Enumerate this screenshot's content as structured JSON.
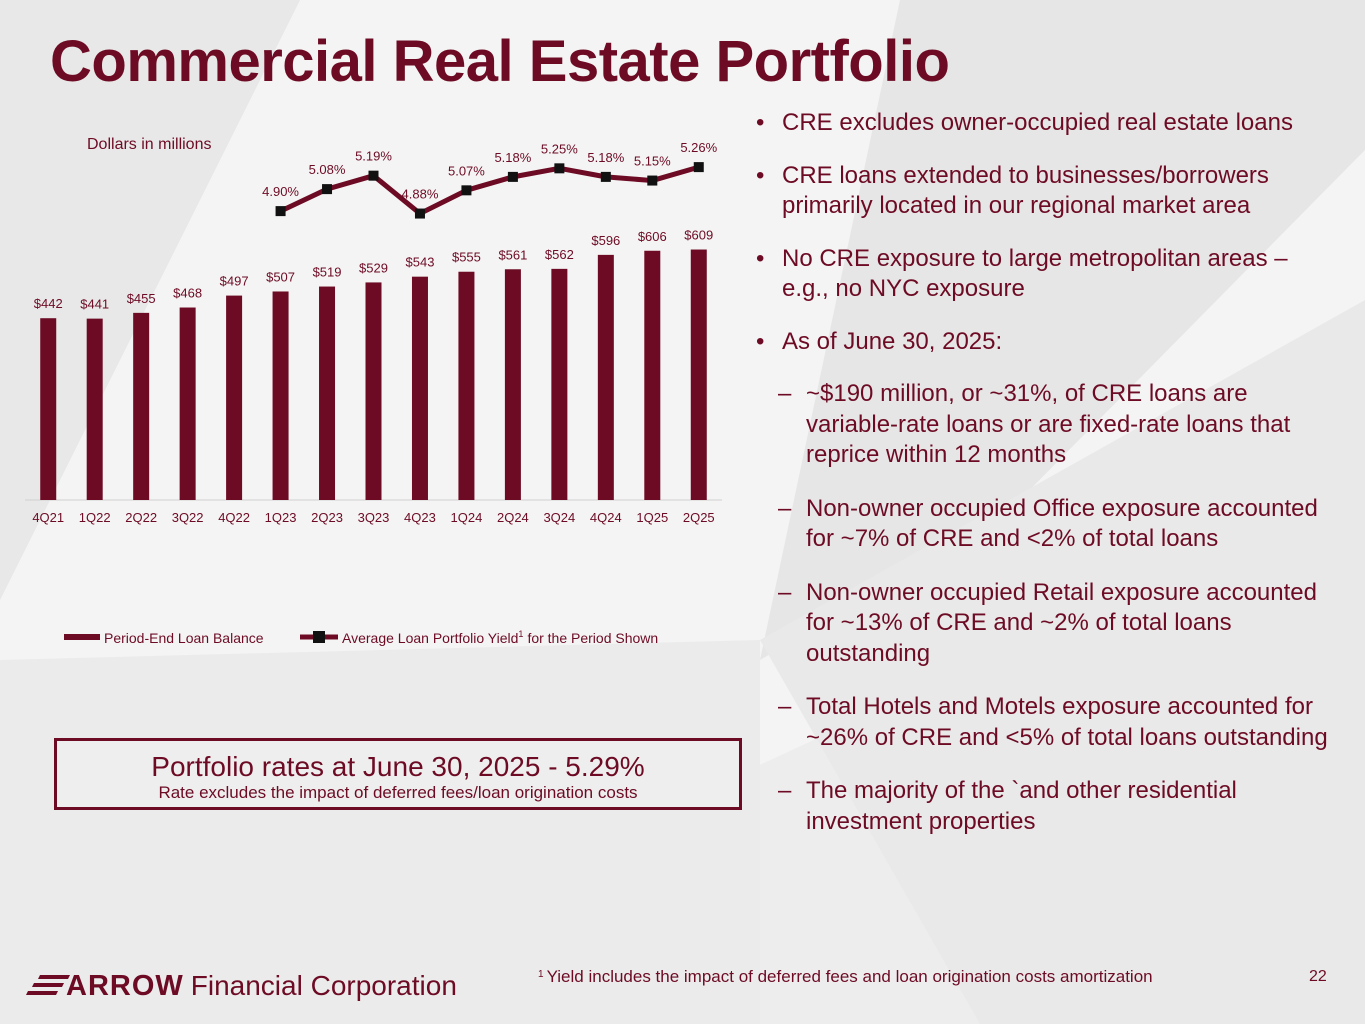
{
  "title": "Commercial Real Estate Portfolio",
  "chart_data": {
    "type": "bar+line",
    "subtitle": "Dollars in millions",
    "categories": [
      "4Q21",
      "1Q22",
      "2Q22",
      "3Q22",
      "4Q22",
      "1Q23",
      "2Q23",
      "3Q23",
      "4Q23",
      "1Q24",
      "2Q24",
      "3Q24",
      "4Q24",
      "1Q25",
      "2Q25"
    ],
    "bar_series": {
      "name": "Period-End Loan Balance",
      "values": [
        442,
        441,
        455,
        468,
        497,
        507,
        519,
        529,
        543,
        555,
        561,
        562,
        596,
        606,
        609
      ],
      "labels": [
        "$442",
        "$441",
        "$455",
        "$468",
        "$497",
        "$507",
        "$519",
        "$529",
        "$543",
        "$555",
        "$561",
        "$562",
        "$596",
        "$606",
        "$609"
      ]
    },
    "line_series": {
      "name": "Average Loan Portfolio Yield",
      "name_suffix": "for the Period Shown",
      "footnote_marker": "1",
      "start_index": 5,
      "values": [
        4.9,
        5.08,
        5.19,
        4.88,
        5.07,
        5.18,
        5.25,
        5.18,
        5.15,
        5.26
      ],
      "labels": [
        "4.90%",
        "5.08%",
        "5.19%",
        "4.88%",
        "5.07%",
        "5.18%",
        "5.25%",
        "5.18%",
        "5.15%",
        "5.26%"
      ]
    },
    "bar_ylim": [
      0,
      620
    ],
    "line_ylim": [
      4.5,
      5.4
    ],
    "color": "#6d0b24"
  },
  "callout": {
    "main": "Portfolio rates at June 30, 2025 - 5.29%",
    "sub": "Rate excludes the impact of deferred fees/loan origination costs"
  },
  "bullets": {
    "b1": "CRE excludes owner-occupied real estate loans",
    "b2": "CRE loans extended to businesses/borrowers primarily located in our regional market area",
    "b3": "No CRE exposure to large metropolitan areas – e.g., no NYC exposure",
    "b4": "As of June 30, 2025:",
    "s1": "~$190 million, or ~31%, of CRE loans are variable-rate loans or are fixed-rate loans that reprice within 12 months",
    "s2": "Non-owner occupied Office exposure accounted for ~7% of CRE and  <2% of total loans",
    "s3": "Non-owner occupied Retail exposure accounted for ~13% of CRE and  ~2% of total loans outstanding",
    "s4": "Total Hotels and Motels exposure accounted for ~26% of CRE and <5% of total loans outstanding",
    "s5": "The majority of the `and other residential investment properties",
    "dash": "–"
  },
  "footer": {
    "logo_word": "ARROW",
    "logo_rest": "Financial Corporation",
    "footnote_marker": "1",
    "footnote": "Yield includes the impact of deferred fees and loan origination costs amortization",
    "page": "22"
  }
}
